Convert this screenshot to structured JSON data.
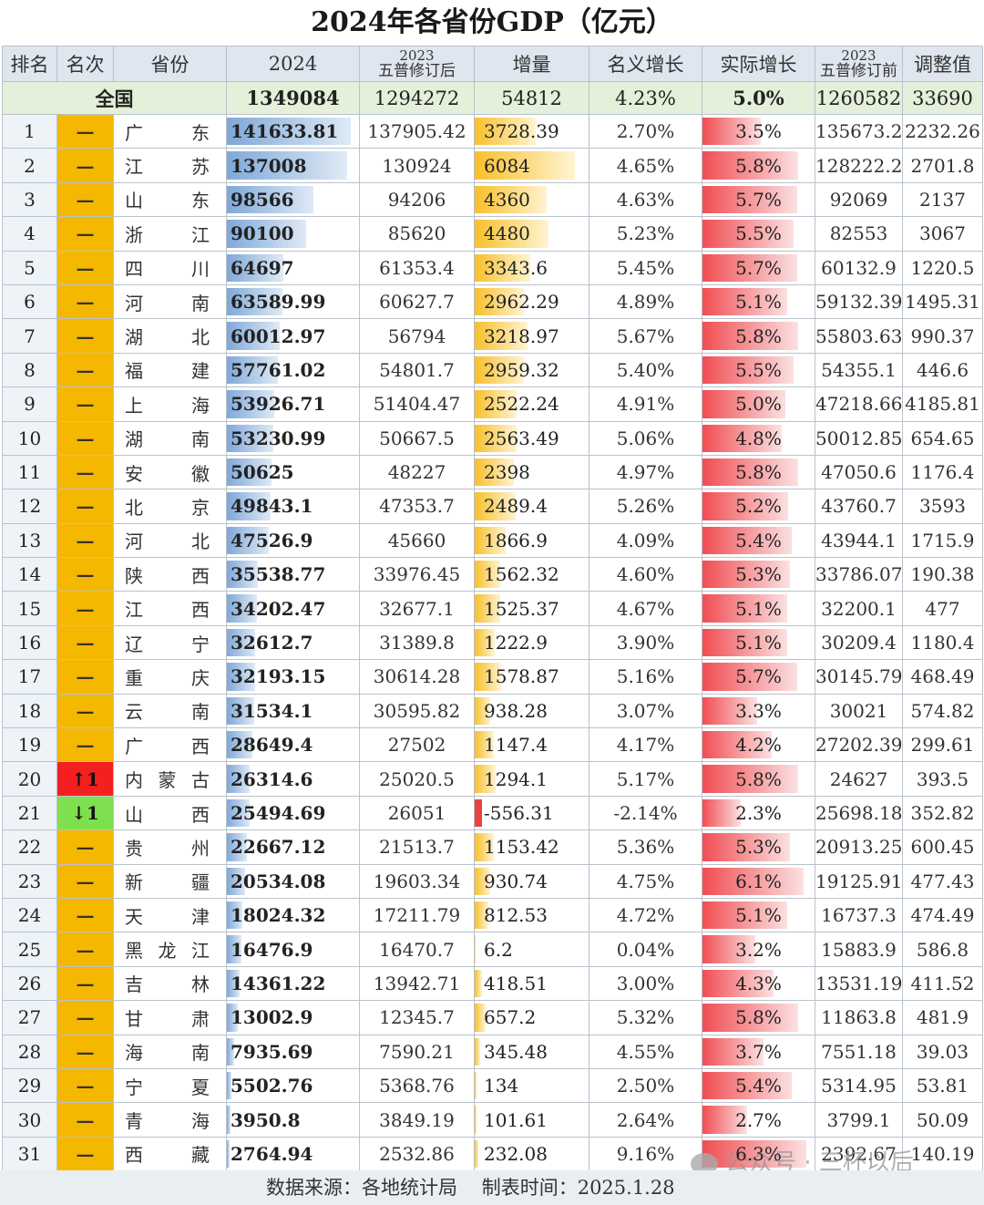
{
  "title": "2024年各省份GDP（亿元）",
  "headers": {
    "rank": "排名",
    "change": "名次",
    "province": "省份",
    "gdp2024": "2024",
    "rev2023_year": "2023",
    "rev2023": "五普修订后",
    "increase": "增量",
    "nominal": "名义增长",
    "real": "实际增长",
    "pre2023_year": "2023",
    "pre2023": "五普修订前",
    "adjust": "调整值"
  },
  "total": {
    "label": "全国",
    "gdp2024": "1349084",
    "rev2023": "1294272",
    "increase": "54812",
    "nominal": "4.23%",
    "real": "5.0%",
    "pre2023": "1260582",
    "adjust": "33690"
  },
  "rows": [
    {
      "rank": "1",
      "change": "—",
      "province": "广东",
      "gdp2024": "141633.81",
      "rev2023": "137905.42",
      "increase": "3728.39",
      "nominal": "2.70%",
      "real": "3.5%",
      "pre2023": "135673.2",
      "adjust": "2232.26",
      "gdp_value": 141633.81,
      "inc_value": 3728.39,
      "real_value": 3.5
    },
    {
      "rank": "2",
      "change": "—",
      "province": "江苏",
      "gdp2024": "137008",
      "rev2023": "130924",
      "increase": "6084",
      "nominal": "4.65%",
      "real": "5.8%",
      "pre2023": "128222.2",
      "adjust": "2701.8",
      "gdp_value": 137008,
      "inc_value": 6084,
      "real_value": 5.8
    },
    {
      "rank": "3",
      "change": "—",
      "province": "山东",
      "gdp2024": "98566",
      "rev2023": "94206",
      "increase": "4360",
      "nominal": "4.63%",
      "real": "5.7%",
      "pre2023": "92069",
      "adjust": "2137",
      "gdp_value": 98566,
      "inc_value": 4360,
      "real_value": 5.7
    },
    {
      "rank": "4",
      "change": "—",
      "province": "浙江",
      "gdp2024": "90100",
      "rev2023": "85620",
      "increase": "4480",
      "nominal": "5.23%",
      "real": "5.5%",
      "pre2023": "82553",
      "adjust": "3067",
      "gdp_value": 90100,
      "inc_value": 4480,
      "real_value": 5.5
    },
    {
      "rank": "5",
      "change": "—",
      "province": "四川",
      "gdp2024": "64697",
      "rev2023": "61353.4",
      "increase": "3343.6",
      "nominal": "5.45%",
      "real": "5.7%",
      "pre2023": "60132.9",
      "adjust": "1220.5",
      "gdp_value": 64697,
      "inc_value": 3343.6,
      "real_value": 5.7
    },
    {
      "rank": "6",
      "change": "—",
      "province": "河南",
      "gdp2024": "63589.99",
      "rev2023": "60627.7",
      "increase": "2962.29",
      "nominal": "4.89%",
      "real": "5.1%",
      "pre2023": "59132.39",
      "adjust": "1495.31",
      "gdp_value": 63589.99,
      "inc_value": 2962.29,
      "real_value": 5.1
    },
    {
      "rank": "7",
      "change": "—",
      "province": "湖北",
      "gdp2024": "60012.97",
      "rev2023": "56794",
      "increase": "3218.97",
      "nominal": "5.67%",
      "real": "5.8%",
      "pre2023": "55803.63",
      "adjust": "990.37",
      "gdp_value": 60012.97,
      "inc_value": 3218.97,
      "real_value": 5.8
    },
    {
      "rank": "8",
      "change": "—",
      "province": "福建",
      "gdp2024": "57761.02",
      "rev2023": "54801.7",
      "increase": "2959.32",
      "nominal": "5.40%",
      "real": "5.5%",
      "pre2023": "54355.1",
      "adjust": "446.6",
      "gdp_value": 57761.02,
      "inc_value": 2959.32,
      "real_value": 5.5
    },
    {
      "rank": "9",
      "change": "—",
      "province": "上海",
      "gdp2024": "53926.71",
      "rev2023": "51404.47",
      "increase": "2522.24",
      "nominal": "4.91%",
      "real": "5.0%",
      "pre2023": "47218.66",
      "adjust": "4185.81",
      "gdp_value": 53926.71,
      "inc_value": 2522.24,
      "real_value": 5.0
    },
    {
      "rank": "10",
      "change": "—",
      "province": "湖南",
      "gdp2024": "53230.99",
      "rev2023": "50667.5",
      "increase": "2563.49",
      "nominal": "5.06%",
      "real": "4.8%",
      "pre2023": "50012.85",
      "adjust": "654.65",
      "gdp_value": 53230.99,
      "inc_value": 2563.49,
      "real_value": 4.8
    },
    {
      "rank": "11",
      "change": "—",
      "province": "安徽",
      "gdp2024": "50625",
      "rev2023": "48227",
      "increase": "2398",
      "nominal": "4.97%",
      "real": "5.8%",
      "pre2023": "47050.6",
      "adjust": "1176.4",
      "gdp_value": 50625,
      "inc_value": 2398,
      "real_value": 5.8
    },
    {
      "rank": "12",
      "change": "—",
      "province": "北京",
      "gdp2024": "49843.1",
      "rev2023": "47353.7",
      "increase": "2489.4",
      "nominal": "5.26%",
      "real": "5.2%",
      "pre2023": "43760.7",
      "adjust": "3593",
      "gdp_value": 49843.1,
      "inc_value": 2489.4,
      "real_value": 5.2
    },
    {
      "rank": "13",
      "change": "—",
      "province": "河北",
      "gdp2024": "47526.9",
      "rev2023": "45660",
      "increase": "1866.9",
      "nominal": "4.09%",
      "real": "5.4%",
      "pre2023": "43944.1",
      "adjust": "1715.9",
      "gdp_value": 47526.9,
      "inc_value": 1866.9,
      "real_value": 5.4
    },
    {
      "rank": "14",
      "change": "—",
      "province": "陕西",
      "gdp2024": "35538.77",
      "rev2023": "33976.45",
      "increase": "1562.32",
      "nominal": "4.60%",
      "real": "5.3%",
      "pre2023": "33786.07",
      "adjust": "190.38",
      "gdp_value": 35538.77,
      "inc_value": 1562.32,
      "real_value": 5.3
    },
    {
      "rank": "15",
      "change": "—",
      "province": "江西",
      "gdp2024": "34202.47",
      "rev2023": "32677.1",
      "increase": "1525.37",
      "nominal": "4.67%",
      "real": "5.1%",
      "pre2023": "32200.1",
      "adjust": "477",
      "gdp_value": 34202.47,
      "inc_value": 1525.37,
      "real_value": 5.1
    },
    {
      "rank": "16",
      "change": "—",
      "province": "辽宁",
      "gdp2024": "32612.7",
      "rev2023": "31389.8",
      "increase": "1222.9",
      "nominal": "3.90%",
      "real": "5.1%",
      "pre2023": "30209.4",
      "adjust": "1180.4",
      "gdp_value": 32612.7,
      "inc_value": 1222.9,
      "real_value": 5.1
    },
    {
      "rank": "17",
      "change": "—",
      "province": "重庆",
      "gdp2024": "32193.15",
      "rev2023": "30614.28",
      "increase": "1578.87",
      "nominal": "5.16%",
      "real": "5.7%",
      "pre2023": "30145.79",
      "adjust": "468.49",
      "gdp_value": 32193.15,
      "inc_value": 1578.87,
      "real_value": 5.7
    },
    {
      "rank": "18",
      "change": "—",
      "province": "云南",
      "gdp2024": "31534.1",
      "rev2023": "30595.82",
      "increase": "938.28",
      "nominal": "3.07%",
      "real": "3.3%",
      "pre2023": "30021",
      "adjust": "574.82",
      "gdp_value": 31534.1,
      "inc_value": 938.28,
      "real_value": 3.3
    },
    {
      "rank": "19",
      "change": "—",
      "province": "广西",
      "gdp2024": "28649.4",
      "rev2023": "27502",
      "increase": "1147.4",
      "nominal": "4.17%",
      "real": "4.2%",
      "pre2023": "27202.39",
      "adjust": "299.61",
      "gdp_value": 28649.4,
      "inc_value": 1147.4,
      "real_value": 4.2
    },
    {
      "rank": "20",
      "change": "↑1",
      "change_dir": "up",
      "province": "内蒙古",
      "gdp2024": "26314.6",
      "rev2023": "25020.5",
      "increase": "1294.1",
      "nominal": "5.17%",
      "real": "5.8%",
      "pre2023": "24627",
      "adjust": "393.5",
      "gdp_value": 26314.6,
      "inc_value": 1294.1,
      "real_value": 5.8
    },
    {
      "rank": "21",
      "change": "↓1",
      "change_dir": "down",
      "province": "山西",
      "gdp2024": "25494.69",
      "rev2023": "26051",
      "increase": "-556.31",
      "nominal": "-2.14%",
      "real": "2.3%",
      "pre2023": "25698.18",
      "adjust": "352.82",
      "gdp_value": 25494.69,
      "inc_value": -556.31,
      "real_value": 2.3
    },
    {
      "rank": "22",
      "change": "—",
      "province": "贵州",
      "gdp2024": "22667.12",
      "rev2023": "21513.7",
      "increase": "1153.42",
      "nominal": "5.36%",
      "real": "5.3%",
      "pre2023": "20913.25",
      "adjust": "600.45",
      "gdp_value": 22667.12,
      "inc_value": 1153.42,
      "real_value": 5.3
    },
    {
      "rank": "23",
      "change": "—",
      "province": "新疆",
      "gdp2024": "20534.08",
      "rev2023": "19603.34",
      "increase": "930.74",
      "nominal": "4.75%",
      "real": "6.1%",
      "pre2023": "19125.91",
      "adjust": "477.43",
      "gdp_value": 20534.08,
      "inc_value": 930.74,
      "real_value": 6.1
    },
    {
      "rank": "24",
      "change": "—",
      "province": "天津",
      "gdp2024": "18024.32",
      "rev2023": "17211.79",
      "increase": "812.53",
      "nominal": "4.72%",
      "real": "5.1%",
      "pre2023": "16737.3",
      "adjust": "474.49",
      "gdp_value": 18024.32,
      "inc_value": 812.53,
      "real_value": 5.1
    },
    {
      "rank": "25",
      "change": "—",
      "province": "黑龙江",
      "gdp2024": "16476.9",
      "rev2023": "16470.7",
      "increase": "6.2",
      "nominal": "0.04%",
      "real": "3.2%",
      "pre2023": "15883.9",
      "adjust": "586.8",
      "gdp_value": 16476.9,
      "inc_value": 6.2,
      "real_value": 3.2
    },
    {
      "rank": "26",
      "change": "—",
      "province": "吉林",
      "gdp2024": "14361.22",
      "rev2023": "13942.71",
      "increase": "418.51",
      "nominal": "3.00%",
      "real": "4.3%",
      "pre2023": "13531.19",
      "adjust": "411.52",
      "gdp_value": 14361.22,
      "inc_value": 418.51,
      "real_value": 4.3
    },
    {
      "rank": "27",
      "change": "—",
      "province": "甘肃",
      "gdp2024": "13002.9",
      "rev2023": "12345.7",
      "increase": "657.2",
      "nominal": "5.32%",
      "real": "5.8%",
      "pre2023": "11863.8",
      "adjust": "481.9",
      "gdp_value": 13002.9,
      "inc_value": 657.2,
      "real_value": 5.8
    },
    {
      "rank": "28",
      "change": "—",
      "province": "海南",
      "gdp2024": "7935.69",
      "rev2023": "7590.21",
      "increase": "345.48",
      "nominal": "4.55%",
      "real": "3.7%",
      "pre2023": "7551.18",
      "adjust": "39.03",
      "gdp_value": 7935.69,
      "inc_value": 345.48,
      "real_value": 3.7
    },
    {
      "rank": "29",
      "change": "—",
      "province": "宁夏",
      "gdp2024": "5502.76",
      "rev2023": "5368.76",
      "increase": "134",
      "nominal": "2.50%",
      "real": "5.4%",
      "pre2023": "5314.95",
      "adjust": "53.81",
      "gdp_value": 5502.76,
      "inc_value": 134,
      "real_value": 5.4
    },
    {
      "rank": "30",
      "change": "—",
      "province": "青海",
      "gdp2024": "3950.8",
      "rev2023": "3849.19",
      "increase": "101.61",
      "nominal": "2.64%",
      "real": "2.7%",
      "pre2023": "3799.1",
      "adjust": "50.09",
      "gdp_value": 3950.8,
      "inc_value": 101.61,
      "real_value": 2.7
    },
    {
      "rank": "31",
      "change": "—",
      "province": "西藏",
      "gdp2024": "2764.94",
      "rev2023": "2532.86",
      "increase": "232.08",
      "nominal": "9.16%",
      "real": "6.3%",
      "pre2023": "2392.67",
      "adjust": "140.19",
      "gdp_value": 2764.94,
      "inc_value": 232.08,
      "real_value": 6.3
    }
  ],
  "footer": {
    "source": "数据来源：各地统计局",
    "date": "制表时间：2025.1.28"
  },
  "watermark": "公众号 · 三杯以后",
  "colors": {
    "gdp_bar": "#7fa8d8",
    "increase_bar": "#f7c02b",
    "real_bar": "#f04d52",
    "change_flat": "#f5b800",
    "change_up": "#f41f1f",
    "change_down": "#7fe04f",
    "total_row": "#e4f0d9",
    "header": "#dfe6ef"
  }
}
